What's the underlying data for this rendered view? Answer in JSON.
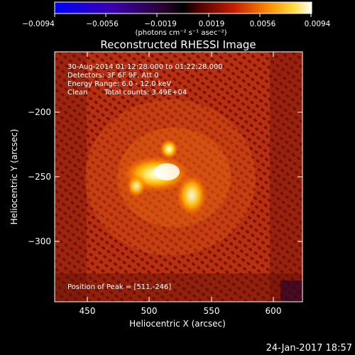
{
  "colorbar": {
    "tick_labels": [
      "−0.0094",
      "−0.0056",
      "−0.0019",
      "0.0019",
      "0.0056",
      "0.0094"
    ],
    "units": "(photons cm⁻² s⁻¹ asec⁻²)"
  },
  "title": "Reconstructed RHESSI Image",
  "info": {
    "line1": "30-Aug-2014 01:12:28.000 to 01:22:28.000",
    "line2": "Detectors: 3F 6F 9F, Att 0",
    "line3": "Energy Range: 6.0 - 12.0 keV",
    "line4_left": "Clean",
    "line4_right": "Total counts: 3.49E+04",
    "peak": "Position of Peak = [511,-246]"
  },
  "axes": {
    "xlabel": "Heliocentric X (arcsec)",
    "ylabel": "Heliocentric Y (arcsec)",
    "x_ticks": [
      "450",
      "500",
      "550",
      "600"
    ],
    "y_ticks": [
      "−200",
      "−250",
      "−300"
    ]
  },
  "timestamp": "24-Jan-2017 18:57"
}
